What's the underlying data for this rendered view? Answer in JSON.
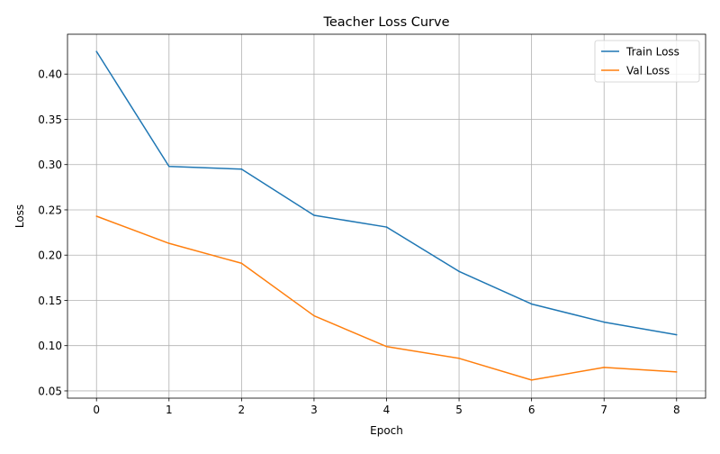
{
  "chart_data": {
    "type": "line",
    "title": "Teacher Loss Curve",
    "xlabel": "Epoch",
    "ylabel": "Loss",
    "x": [
      0,
      1,
      2,
      3,
      4,
      5,
      6,
      7,
      8
    ],
    "xlim": [
      -0.4,
      8.4
    ],
    "ylim": [
      0.042,
      0.444
    ],
    "xticks": [
      0,
      1,
      2,
      3,
      4,
      5,
      6,
      7,
      8
    ],
    "xtick_labels": [
      "0",
      "1",
      "2",
      "3",
      "4",
      "5",
      "6",
      "7",
      "8"
    ],
    "yticks": [
      0.05,
      0.1,
      0.15,
      0.2,
      0.25,
      0.3,
      0.35,
      0.4
    ],
    "ytick_labels": [
      "0.05",
      "0.10",
      "0.15",
      "0.20",
      "0.25",
      "0.30",
      "0.35",
      "0.40"
    ],
    "grid": true,
    "legend_position": "top-right",
    "series": [
      {
        "name": "Train Loss",
        "color": "#1f77b4",
        "values": [
          0.425,
          0.298,
          0.295,
          0.244,
          0.231,
          0.182,
          0.146,
          0.126,
          0.112
        ]
      },
      {
        "name": "Val Loss",
        "color": "#ff7f0e",
        "values": [
          0.243,
          0.213,
          0.191,
          0.133,
          0.099,
          0.086,
          0.062,
          0.076,
          0.071
        ]
      }
    ]
  }
}
